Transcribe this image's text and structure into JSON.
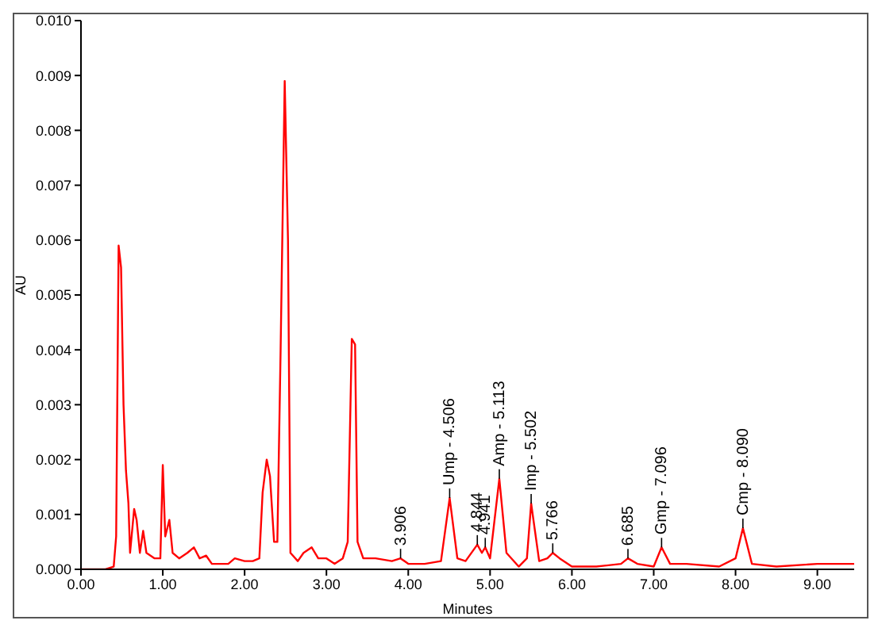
{
  "chart_data": {
    "type": "line",
    "xlabel": "Minutes",
    "ylabel": "AU",
    "xlim": [
      0,
      9.45
    ],
    "xticks": [
      {
        "value": 0,
        "label": "0.00"
      },
      {
        "value": 1,
        "label": "1.00"
      },
      {
        "value": 2,
        "label": "2.00"
      },
      {
        "value": 3,
        "label": "3.00"
      },
      {
        "value": 4,
        "label": "4.00"
      },
      {
        "value": 5,
        "label": "5.00"
      },
      {
        "value": 6,
        "label": "6.00"
      },
      {
        "value": 7,
        "label": "7.00"
      },
      {
        "value": 8,
        "label": "8.00"
      },
      {
        "value": 9,
        "label": "9.00"
      }
    ],
    "ylim": [
      0,
      0.01
    ],
    "yticks": [
      {
        "value": 0,
        "label": "0.000"
      },
      {
        "value": 0.001,
        "label": "0.001"
      },
      {
        "value": 0.002,
        "label": "0.002"
      },
      {
        "value": 0.003,
        "label": "0.003"
      },
      {
        "value": 0.004,
        "label": "0.004"
      },
      {
        "value": 0.005,
        "label": "0.005"
      },
      {
        "value": 0.006,
        "label": "0.006"
      },
      {
        "value": 0.007,
        "label": "0.007"
      },
      {
        "value": 0.008,
        "label": "0.008"
      },
      {
        "value": 0.009,
        "label": "0.009"
      },
      {
        "value": 0.01,
        "label": "0.010"
      }
    ],
    "grid": false,
    "legend": false,
    "marker": "none",
    "line_style": "solid",
    "x": [
      0,
      0.3,
      0.4,
      0.43,
      0.46,
      0.49,
      0.52,
      0.55,
      0.58,
      0.6,
      0.65,
      0.68,
      0.72,
      0.76,
      0.8,
      0.9,
      0.97,
      1.0,
      1.03,
      1.08,
      1.12,
      1.2,
      1.3,
      1.38,
      1.45,
      1.53,
      1.6,
      1.8,
      1.88,
      2.0,
      2.1,
      2.18,
      2.22,
      2.27,
      2.31,
      2.36,
      2.4,
      2.44,
      2.49,
      2.53,
      2.56,
      2.65,
      2.72,
      2.82,
      2.9,
      3.0,
      3.1,
      3.2,
      3.26,
      3.31,
      3.35,
      3.38,
      3.45,
      3.6,
      3.8,
      3.906,
      4.0,
      4.2,
      4.4,
      4.506,
      4.6,
      4.7,
      4.844,
      4.9,
      4.941,
      5.0,
      5.113,
      5.2,
      5.35,
      5.45,
      5.502,
      5.6,
      5.7,
      5.766,
      5.85,
      6.0,
      6.3,
      6.6,
      6.685,
      6.8,
      7.0,
      7.096,
      7.2,
      7.4,
      7.8,
      8.0,
      8.09,
      8.2,
      8.5,
      9.0,
      9.45
    ],
    "series": [
      {
        "color": "#ff0000",
        "values": [
          0,
          0,
          5e-05,
          0.0006,
          0.0059,
          0.0055,
          0.003,
          0.0018,
          0.0012,
          0.0003,
          0.0011,
          0.0009,
          0.0003,
          0.0007,
          0.0003,
          0.0002,
          0.0002,
          0.0019,
          0.0006,
          0.0009,
          0.0003,
          0.0002,
          0.0003,
          0.0004,
          0.0002,
          0.00025,
          0.0001,
          0.0001,
          0.0002,
          0.00015,
          0.00015,
          0.0002,
          0.0014,
          0.002,
          0.0017,
          0.0005,
          0.0005,
          0.004,
          0.0089,
          0.006,
          0.0003,
          0.00015,
          0.0003,
          0.0004,
          0.0002,
          0.0002,
          0.0001,
          0.0002,
          0.0005,
          0.0042,
          0.0041,
          0.0005,
          0.0002,
          0.0002,
          0.00015,
          0.0002,
          0.0001,
          0.0001,
          0.00015,
          0.0013,
          0.0002,
          0.00015,
          0.00045,
          0.0003,
          0.0004,
          0.0002,
          0.00165,
          0.0003,
          5e-05,
          0.0002,
          0.0012,
          0.00015,
          0.0002,
          0.0003,
          0.0002,
          5e-05,
          5e-05,
          0.0001,
          0.0002,
          0.0001,
          5e-05,
          0.0004,
          0.0001,
          0.0001,
          5e-05,
          0.0002,
          0.00075,
          0.0001,
          5e-05,
          0.0001,
          0.0001
        ]
      }
    ],
    "annotations": [
      {
        "text": "3.906",
        "x": 3.906,
        "y": 0.0002
      },
      {
        "text": "Ump - 4.506",
        "x": 4.506,
        "y": 0.0013
      },
      {
        "text": "4.844",
        "x": 4.844,
        "y": 0.00045
      },
      {
        "text": "4.941",
        "x": 4.941,
        "y": 0.0004
      },
      {
        "text": "Amp - 5.113",
        "x": 5.113,
        "y": 0.00165
      },
      {
        "text": "Imp - 5.502",
        "x": 5.502,
        "y": 0.0012
      },
      {
        "text": "5.766",
        "x": 5.766,
        "y": 0.0003
      },
      {
        "text": "6.685",
        "x": 6.685,
        "y": 0.0002
      },
      {
        "text": "Gmp - 7.096",
        "x": 7.096,
        "y": 0.0004
      },
      {
        "text": "Cmp - 8.090",
        "x": 8.09,
        "y": 0.00075
      }
    ]
  }
}
